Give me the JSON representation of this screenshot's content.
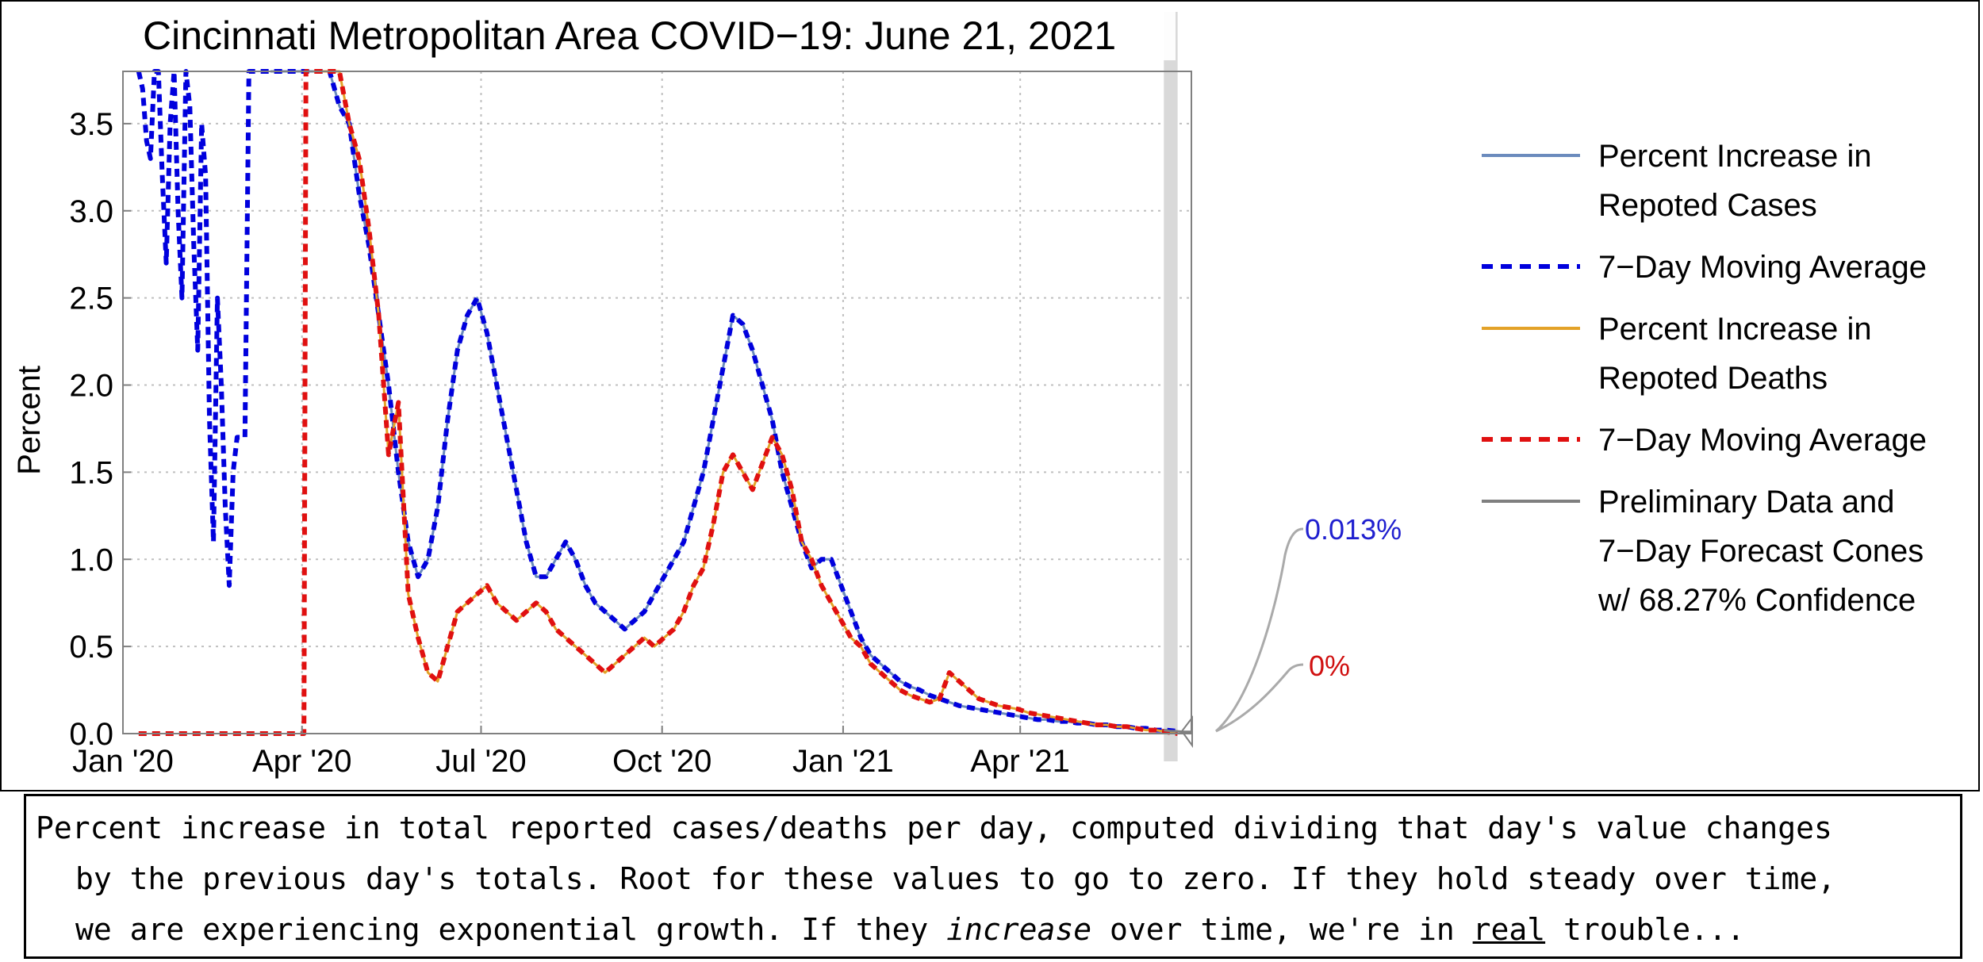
{
  "chart_data": {
    "type": "line",
    "title": "Cincinnati Metropolitan Area COVID−19: June 21, 2021",
    "xlabel": "",
    "ylabel": "Percent",
    "xlim": [
      0,
      543
    ],
    "ylim": [
      0,
      3.8
    ],
    "x_unit": "days since 2020-01-01",
    "x_ticks": [
      {
        "day": 0,
        "label": "Jan '20"
      },
      {
        "day": 91,
        "label": "Apr '20"
      },
      {
        "day": 182,
        "label": "Jul '20"
      },
      {
        "day": 274,
        "label": "Oct '20"
      },
      {
        "day": 366,
        "label": "Jan '21"
      },
      {
        "day": 456,
        "label": "Apr '21"
      }
    ],
    "y_ticks": [
      {
        "value": 0.0,
        "label": "0.0"
      },
      {
        "value": 0.5,
        "label": "0.5"
      },
      {
        "value": 1.0,
        "label": "1.0"
      },
      {
        "value": 1.5,
        "label": "1.5"
      },
      {
        "value": 2.0,
        "label": "2.0"
      },
      {
        "value": 2.5,
        "label": "2.5"
      },
      {
        "value": 3.0,
        "label": "3.0"
      },
      {
        "value": 3.5,
        "label": "3.5"
      }
    ],
    "grid": true,
    "legend_position": "right",
    "series": [
      {
        "name": "Percent Increase in Repoted Cases",
        "label_lines": [
          "Percent Increase in",
          "Repoted Cases"
        ],
        "color": "#6b8bbd",
        "style": "solid",
        "x": [
          75,
          80,
          85,
          90,
          95,
          100,
          105,
          110,
          115,
          120,
          125,
          130,
          135,
          140,
          145,
          150,
          155,
          160,
          165,
          170,
          175,
          180,
          185,
          190,
          195,
          200,
          205,
          210,
          215,
          220,
          225,
          230,
          235,
          240,
          245,
          250,
          255,
          260,
          265,
          270,
          275,
          280,
          285,
          290,
          295,
          300,
          305,
          310,
          315,
          320,
          325,
          330,
          335,
          340,
          345,
          350,
          355,
          360,
          365,
          370,
          375,
          380,
          385,
          390,
          395,
          400,
          405,
          410,
          415,
          420,
          425,
          430,
          435,
          440,
          445,
          450,
          455,
          460,
          465,
          470,
          475,
          480,
          485,
          490,
          495,
          500,
          505,
          510,
          515,
          520,
          525,
          530,
          536
        ],
        "y": [
          3.8,
          3.8,
          3.8,
          3.8,
          3.8,
          3.8,
          3.8,
          3.6,
          3.5,
          3.1,
          2.8,
          2.4,
          2.0,
          1.5,
          1.1,
          0.9,
          1.0,
          1.3,
          1.8,
          2.2,
          2.4,
          2.5,
          2.3,
          2.0,
          1.7,
          1.4,
          1.1,
          0.9,
          0.9,
          1.0,
          1.1,
          1.0,
          0.85,
          0.75,
          0.7,
          0.65,
          0.6,
          0.65,
          0.7,
          0.8,
          0.9,
          1.0,
          1.1,
          1.3,
          1.5,
          1.8,
          2.1,
          2.4,
          2.35,
          2.2,
          2.0,
          1.8,
          1.5,
          1.3,
          1.1,
          0.95,
          1.0,
          1.0,
          0.85,
          0.7,
          0.55,
          0.45,
          0.4,
          0.35,
          0.3,
          0.27,
          0.25,
          0.22,
          0.2,
          0.18,
          0.16,
          0.15,
          0.14,
          0.13,
          0.12,
          0.11,
          0.1,
          0.09,
          0.08,
          0.08,
          0.07,
          0.07,
          0.06,
          0.06,
          0.05,
          0.05,
          0.04,
          0.04,
          0.03,
          0.03,
          0.02,
          0.02,
          0.013
        ]
      },
      {
        "name": "7−Day Moving Average (Cases)",
        "legend_label": "7−Day Moving Average",
        "color": "#0000dd",
        "style": "dashed",
        "x": [
          8,
          10,
          12,
          14,
          16,
          18,
          20,
          22,
          24,
          26,
          28,
          30,
          32,
          34,
          36,
          38,
          40,
          42,
          44,
          46,
          48,
          50,
          52,
          54,
          56,
          58,
          60,
          62,
          64,
          66,
          68,
          70,
          72,
          74,
          76,
          78,
          80,
          82,
          84,
          86,
          88,
          90,
          95,
          100,
          105,
          110,
          115,
          120,
          125,
          130,
          135,
          140,
          145,
          150,
          155,
          160,
          165,
          170,
          175,
          180,
          185,
          190,
          195,
          200,
          205,
          210,
          215,
          220,
          225,
          230,
          235,
          240,
          245,
          250,
          255,
          260,
          265,
          270,
          275,
          280,
          285,
          290,
          295,
          300,
          305,
          310,
          315,
          320,
          325,
          330,
          335,
          340,
          345,
          350,
          355,
          360,
          365,
          370,
          375,
          380,
          385,
          390,
          395,
          400,
          405,
          410,
          415,
          420,
          425,
          430,
          435,
          440,
          445,
          450,
          455,
          460,
          465,
          470,
          475,
          480,
          485,
          490,
          495,
          500,
          505,
          510,
          515,
          520,
          525,
          530,
          536
        ],
        "y": [
          3.8,
          3.7,
          3.4,
          3.3,
          3.8,
          3.8,
          3.2,
          2.7,
          3.5,
          3.8,
          3.0,
          2.5,
          3.8,
          3.6,
          2.8,
          2.2,
          3.5,
          3.2,
          1.8,
          1.1,
          2.5,
          2.0,
          1.3,
          0.85,
          1.5,
          1.7,
          1.7,
          1.7,
          3.8,
          3.8,
          3.8,
          3.8,
          3.8,
          3.8,
          3.8,
          3.8,
          3.8,
          3.8,
          3.8,
          3.8,
          3.8,
          3.8,
          3.8,
          3.8,
          3.8,
          3.6,
          3.5,
          3.1,
          2.8,
          2.4,
          2.0,
          1.5,
          1.1,
          0.9,
          1.0,
          1.3,
          1.8,
          2.2,
          2.4,
          2.5,
          2.3,
          2.0,
          1.7,
          1.4,
          1.1,
          0.9,
          0.9,
          1.0,
          1.1,
          1.0,
          0.85,
          0.75,
          0.7,
          0.65,
          0.6,
          0.65,
          0.7,
          0.8,
          0.9,
          1.0,
          1.1,
          1.3,
          1.5,
          1.8,
          2.1,
          2.4,
          2.35,
          2.2,
          2.0,
          1.8,
          1.5,
          1.3,
          1.1,
          0.95,
          1.0,
          1.0,
          0.85,
          0.7,
          0.55,
          0.45,
          0.4,
          0.35,
          0.3,
          0.27,
          0.25,
          0.22,
          0.2,
          0.18,
          0.16,
          0.15,
          0.14,
          0.13,
          0.12,
          0.11,
          0.1,
          0.09,
          0.08,
          0.08,
          0.07,
          0.07,
          0.06,
          0.06,
          0.05,
          0.05,
          0.04,
          0.04,
          0.03,
          0.03,
          0.02,
          0.02,
          0.013
        ]
      },
      {
        "name": "Percent Increase in Repoted Deaths",
        "label_lines": [
          "Percent Increase in",
          "Repoted Deaths"
        ],
        "color": "#e3a228",
        "style": "solid",
        "x": [
          97,
          100,
          105,
          110,
          115,
          120,
          125,
          130,
          135,
          140,
          145,
          150,
          155,
          160,
          165,
          170,
          175,
          180,
          185,
          190,
          195,
          200,
          205,
          210,
          215,
          220,
          225,
          230,
          235,
          240,
          245,
          250,
          255,
          260,
          265,
          270,
          275,
          280,
          285,
          290,
          295,
          300,
          305,
          310,
          315,
          320,
          325,
          330,
          335,
          340,
          345,
          350,
          355,
          360,
          365,
          370,
          375,
          380,
          385,
          390,
          395,
          400,
          405,
          410,
          415,
          420,
          425,
          430,
          435,
          440,
          445,
          450,
          455,
          460,
          465,
          470,
          475,
          480,
          485,
          490,
          495,
          500,
          505,
          510,
          515,
          520,
          525,
          530,
          536
        ],
        "y": [
          3.8,
          3.8,
          3.8,
          3.8,
          3.5,
          3.3,
          2.9,
          2.4,
          1.6,
          1.9,
          0.8,
          0.55,
          0.35,
          0.3,
          0.5,
          0.7,
          0.75,
          0.8,
          0.85,
          0.75,
          0.7,
          0.65,
          0.7,
          0.75,
          0.7,
          0.6,
          0.55,
          0.5,
          0.45,
          0.4,
          0.35,
          0.4,
          0.45,
          0.5,
          0.55,
          0.5,
          0.55,
          0.6,
          0.7,
          0.85,
          0.95,
          1.2,
          1.5,
          1.6,
          1.5,
          1.4,
          1.55,
          1.7,
          1.6,
          1.4,
          1.1,
          1.0,
          0.85,
          0.75,
          0.65,
          0.55,
          0.5,
          0.4,
          0.35,
          0.3,
          0.25,
          0.22,
          0.2,
          0.18,
          0.2,
          0.35,
          0.3,
          0.25,
          0.2,
          0.18,
          0.16,
          0.15,
          0.14,
          0.12,
          0.11,
          0.1,
          0.09,
          0.08,
          0.07,
          0.06,
          0.05,
          0.05,
          0.04,
          0.04,
          0.03,
          0.02,
          0.02,
          0.01,
          0.0
        ]
      },
      {
        "name": "7−Day Moving Average (Deaths)",
        "legend_label": "7−Day Moving Average",
        "color": "#e01010",
        "style": "dashed",
        "x": [
          8,
          20,
          30,
          40,
          50,
          60,
          70,
          80,
          88,
          90,
          92,
          93,
          94,
          95,
          97,
          100,
          105,
          110,
          115,
          120,
          125,
          130,
          135,
          140,
          145,
          150,
          155,
          160,
          165,
          170,
          175,
          180,
          185,
          190,
          195,
          200,
          205,
          210,
          215,
          220,
          225,
          230,
          235,
          240,
          245,
          250,
          255,
          260,
          265,
          270,
          275,
          280,
          285,
          290,
          295,
          300,
          305,
          310,
          315,
          320,
          325,
          330,
          335,
          340,
          345,
          350,
          355,
          360,
          365,
          370,
          375,
          380,
          385,
          390,
          395,
          400,
          405,
          410,
          415,
          420,
          425,
          430,
          435,
          440,
          445,
          450,
          455,
          460,
          465,
          470,
          475,
          480,
          485,
          490,
          495,
          500,
          505,
          510,
          515,
          520,
          525,
          530,
          536
        ],
        "y": [
          0,
          0,
          0,
          0,
          0,
          0,
          0,
          0,
          0,
          0,
          0,
          3.8,
          3.8,
          3.8,
          3.8,
          3.8,
          3.8,
          3.8,
          3.5,
          3.3,
          2.9,
          2.4,
          1.6,
          1.9,
          0.8,
          0.55,
          0.35,
          0.3,
          0.5,
          0.7,
          0.75,
          0.8,
          0.85,
          0.75,
          0.7,
          0.65,
          0.7,
          0.75,
          0.7,
          0.6,
          0.55,
          0.5,
          0.45,
          0.4,
          0.35,
          0.4,
          0.45,
          0.5,
          0.55,
          0.5,
          0.55,
          0.6,
          0.7,
          0.85,
          0.95,
          1.2,
          1.5,
          1.6,
          1.5,
          1.4,
          1.55,
          1.7,
          1.6,
          1.4,
          1.1,
          1.0,
          0.85,
          0.75,
          0.65,
          0.55,
          0.5,
          0.4,
          0.35,
          0.3,
          0.25,
          0.22,
          0.2,
          0.18,
          0.2,
          0.35,
          0.3,
          0.25,
          0.2,
          0.18,
          0.16,
          0.15,
          0.14,
          0.12,
          0.11,
          0.1,
          0.09,
          0.08,
          0.07,
          0.06,
          0.05,
          0.05,
          0.04,
          0.04,
          0.03,
          0.02,
          0.02,
          0.01,
          0.0
        ]
      },
      {
        "name": "Preliminary Data and 7−Day Forecast Cones w/ 68.27% Confidence",
        "label_lines": [
          "Preliminary Data and",
          "7−Day Forecast Cones",
          "w/ 68.27% Confidence"
        ],
        "color": "#7f7f7f",
        "style": "solid",
        "x": [
          529,
          532,
          536,
          539,
          543
        ],
        "y": [
          0.02,
          0.015,
          0.013,
          0.01,
          0.01
        ]
      }
    ],
    "preliminary_region": {
      "x_start": 529,
      "x_end": 536,
      "color": "#d9d9d9"
    },
    "annotations": [
      {
        "text": "0.013%",
        "series": "cases",
        "color": "#1f1fcf"
      },
      {
        "text": "0%",
        "series": "deaths",
        "color": "#d01010"
      }
    ]
  },
  "caption": {
    "line1": "Percent increase in total reported cases/deaths per day, computed dividing that day's value changes",
    "line2": "by the previous day's totals. Root for these values to go to zero. If they hold steady over time,",
    "line3_a": "we are experiencing exponential growth. If they ",
    "line3_em": "increase",
    "line3_b": " over time, we're in ",
    "line3_u": "real",
    "line3_c": " trouble..."
  }
}
